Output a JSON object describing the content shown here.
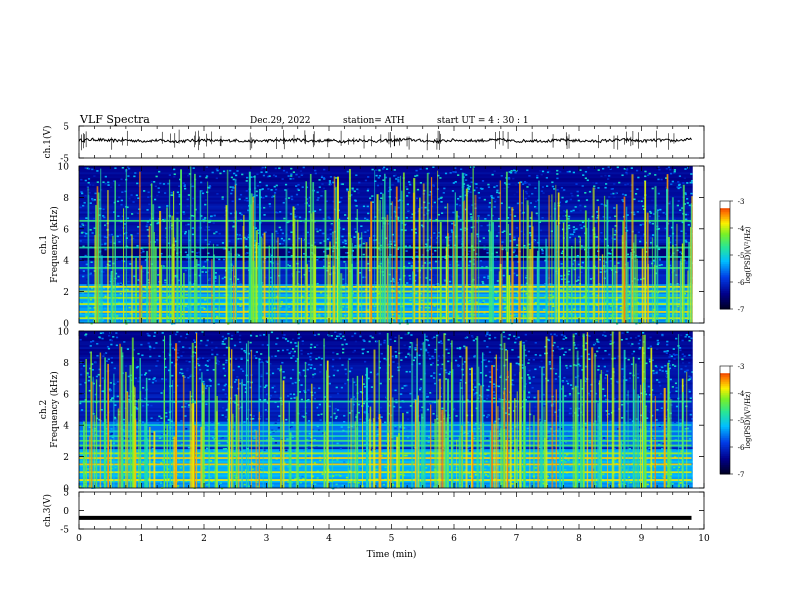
{
  "header": {
    "title": "VLF  Spectra",
    "date": "Dec.29, 2022",
    "station": "station= ATH",
    "start": "start  UT  =   4  : 30 : 1"
  },
  "chart_data": [
    {
      "id": "ch1-waveform",
      "type": "line",
      "ylabel": "ch.1(V)",
      "ylim": [
        -5,
        5
      ],
      "yticks": [
        5,
        -5
      ],
      "xlim": [
        0,
        10
      ],
      "series": [
        {
          "color": "#000000",
          "x": [
            0,
            0.25,
            0.5,
            0.75,
            1.0,
            1.25,
            1.5,
            1.75,
            2.0,
            2.25,
            2.5,
            2.75,
            3.0,
            3.25,
            3.5,
            3.75,
            4.0,
            4.25,
            4.5,
            4.75,
            5.0,
            5.25,
            5.5,
            5.75,
            6.0,
            6.25,
            6.5,
            6.75,
            7.0,
            7.25,
            7.5,
            7.75,
            8.0,
            8.25,
            8.5,
            8.75,
            9.0,
            9.25,
            9.5,
            9.8
          ],
          "y": [
            0.5,
            0.8,
            0.4,
            0.6,
            0.3,
            0.5,
            0.2,
            0.4,
            0.6,
            0.3,
            0.5,
            0.2,
            0.4,
            0.5,
            0.7,
            0.3,
            0.5,
            0.2,
            0.6,
            0.3,
            0.5,
            0.8,
            0.4,
            0.2,
            0.6,
            0.4,
            0.5,
            0.7,
            0.2,
            0.5,
            0.3,
            0.6,
            0.4,
            0.2,
            0.5,
            0.7,
            0.3,
            0.6,
            0.4,
            0.8
          ]
        }
      ]
    },
    {
      "id": "ch1-spectrogram",
      "type": "heatmap",
      "ylabel": "ch.1\nFrequency  (kHz)",
      "ylim": [
        0,
        10
      ],
      "yticks": [
        0,
        2,
        4,
        6,
        8,
        10
      ],
      "xlim": [
        0,
        10
      ],
      "colorbar": {
        "label": "log(PSD)(V²/Hz)",
        "range": [
          -7,
          -3
        ],
        "ticks": [
          -3,
          -4,
          -5,
          -6,
          -7
        ]
      },
      "bands_khz": [
        0.3,
        0.7,
        1.2,
        1.6,
        2.0,
        2.3,
        3.5,
        4.2,
        4.8,
        6.5
      ],
      "dark_band_khz": [
        3.9,
        5.0
      ]
    },
    {
      "id": "ch2-spectrogram",
      "type": "heatmap",
      "ylabel": "ch.2\nFrequency  (kHz)",
      "ylim": [
        0,
        10
      ],
      "yticks": [
        0,
        2,
        4,
        6,
        8,
        10
      ],
      "xlim": [
        0,
        10
      ],
      "colorbar": {
        "label": "log(PSD)(V²/Hz)",
        "range": [
          -7,
          -3
        ],
        "ticks": [
          -3,
          -4,
          -5,
          -6,
          -7
        ]
      },
      "bands_khz": [
        0.5,
        1.0,
        1.5,
        1.9,
        2.2,
        2.7,
        3.0,
        3.3,
        3.6,
        4.0,
        5.5
      ]
    },
    {
      "id": "ch3-waveform",
      "type": "line",
      "ylabel": "ch.3(V)",
      "ylim": [
        -5,
        5
      ],
      "yticks": [
        5,
        0,
        -5
      ],
      "xlim": [
        0,
        10
      ],
      "xlabel": "Time  (min)",
      "xticks": [
        0,
        1,
        2,
        3,
        4,
        5,
        6,
        7,
        8,
        9,
        10
      ],
      "series": [
        {
          "color": "#000000",
          "x": [
            0,
            9.8
          ],
          "y": [
            -2,
            -2
          ]
        }
      ]
    }
  ]
}
